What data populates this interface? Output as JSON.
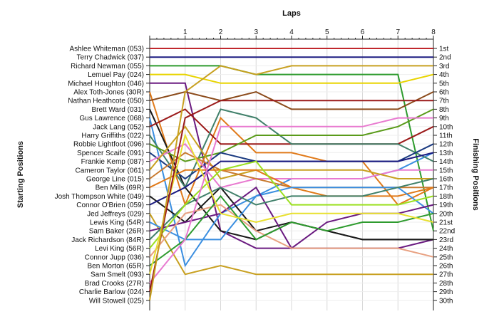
{
  "chart_data": {
    "type": "line",
    "title": "",
    "xlabel": "Laps",
    "ylabel_left": "Starting Positions",
    "ylabel_right": "Finishing Positions",
    "x": [
      0,
      1,
      2,
      3,
      4,
      5,
      6,
      7,
      8
    ],
    "x_tick_labels": [
      "1",
      "2",
      "3",
      "4",
      "5",
      "6",
      "7",
      "8"
    ],
    "y_axis": "position (1 at top)",
    "ylim": [
      1,
      30
    ],
    "grid": true,
    "finishing_labels": [
      "1st",
      "2nd",
      "3rd",
      "4th",
      "5th",
      "6th",
      "7th",
      "8th",
      "9th",
      "10th",
      "11th",
      "12th",
      "13th",
      "14th",
      "15th",
      "16th",
      "17th",
      "18th",
      "19th",
      "20th",
      "21st",
      "22nd",
      "23rd",
      "24th",
      "25th",
      "26th",
      "27th",
      "28th",
      "29th",
      "30th"
    ],
    "series": [
      {
        "name": "Ashlee Whiteman (053)",
        "color": "#c0282d",
        "positions": [
          1,
          1,
          1,
          1,
          1,
          1,
          1,
          1,
          1
        ]
      },
      {
        "name": "Terry Chadwick (037)",
        "color": "#1a1a80",
        "positions": [
          2,
          2,
          2,
          2,
          2,
          2,
          2,
          2,
          2
        ]
      },
      {
        "name": "Richard Newman (055)",
        "color": "#2e9b2e",
        "positions": [
          3,
          3,
          3,
          4,
          4,
          4,
          4,
          4,
          22
        ]
      },
      {
        "name": "Lemuel Pay (024)",
        "color": "#e8d400",
        "positions": [
          4,
          4,
          5,
          5,
          5,
          5,
          5,
          5,
          4
        ]
      },
      {
        "name": "Michael Houghton (046)",
        "color": "#6a1a80",
        "positions": [
          5,
          5,
          22,
          24,
          24,
          24,
          24,
          24,
          23
        ]
      },
      {
        "name": "Alex Toth-Jones (30R)",
        "color": "#e07a1a",
        "positions": [
          6,
          19,
          9,
          13,
          13,
          14,
          14,
          19,
          17
        ]
      },
      {
        "name": "Nathan Heathcote (050)",
        "color": "#8b4a1a",
        "positions": [
          7,
          6,
          7,
          6,
          8,
          8,
          8,
          8,
          6
        ]
      },
      {
        "name": "Brett Ward (031)",
        "color": "#1a1a1a",
        "positions": [
          8,
          17,
          22,
          23,
          21,
          22,
          23,
          23,
          23
        ]
      },
      {
        "name": "Gus Lawrence (068)",
        "color": "#3a8ee0",
        "positions": [
          9,
          26,
          20,
          18,
          16,
          16,
          16,
          15,
          13
        ]
      },
      {
        "name": "Jack Lang (052)",
        "color": "#9b1a1a",
        "positions": [
          10,
          8,
          12,
          12,
          12,
          12,
          12,
          12,
          10
        ]
      },
      {
        "name": "Harry Griffiths (022)",
        "color": "#40806a",
        "positions": [
          11,
          17,
          8,
          9,
          12,
          12,
          12,
          12,
          14
        ]
      },
      {
        "name": "Robbie Lightfoot (096)",
        "color": "#5a9b1a",
        "positions": [
          12,
          14,
          13,
          11,
          11,
          11,
          11,
          10,
          8
        ]
      },
      {
        "name": "Spencer Scaife (091)",
        "color": "#1a3a80",
        "positions": [
          13,
          16,
          13,
          14,
          14,
          14,
          14,
          14,
          12
        ]
      },
      {
        "name": "Frankie Kemp (087)",
        "color": "#e87ad0",
        "positions": [
          14,
          12,
          17,
          16,
          16,
          16,
          16,
          15,
          15
        ]
      },
      {
        "name": "Cameron Taylor (061)",
        "color": "#c8a020",
        "positions": [
          15,
          10,
          16,
          15,
          15,
          15,
          15,
          16,
          16
        ]
      },
      {
        "name": "George Line (015)",
        "color": "#c87a30",
        "positions": [
          16,
          13,
          15,
          16,
          17,
          17,
          17,
          17,
          17
        ]
      },
      {
        "name": "Ben Mills (69R)",
        "color": "#e07a1a",
        "positions": [
          17,
          15,
          15,
          15,
          17,
          18,
          18,
          18,
          17
        ]
      },
      {
        "name": "Josh Thompson White (049)",
        "color": "#1a1a1a",
        "positions": [
          18,
          21,
          17,
          22,
          21,
          22,
          23,
          23,
          23
        ]
      },
      {
        "name": "Connor O'Brien (059)",
        "color": "#1a1a80",
        "positions": [
          19,
          17,
          14,
          14,
          14,
          14,
          14,
          14,
          13
        ]
      },
      {
        "name": "Jed Jeffreys (029)",
        "color": "#c8a020",
        "positions": [
          20,
          27,
          26,
          27,
          27,
          27,
          27,
          27,
          27
        ]
      },
      {
        "name": "Lewis King (54R)",
        "color": "#3a8ee0",
        "positions": [
          21,
          23,
          23,
          18,
          17,
          17,
          17,
          17,
          20
        ]
      },
      {
        "name": "Sam Baker (26R)",
        "color": "#6a1a80",
        "positions": [
          22,
          21,
          20,
          17,
          24,
          21,
          20,
          20,
          19
        ]
      },
      {
        "name": "Jack Richardson (84R)",
        "color": "#40806a",
        "positions": [
          23,
          19,
          17,
          19,
          18,
          18,
          18,
          17,
          16
        ]
      },
      {
        "name": "Levi King (56R)",
        "color": "#9be020",
        "positions": [
          24,
          19,
          15,
          14,
          19,
          19,
          19,
          19,
          18
        ]
      },
      {
        "name": "Connor Jupp (036)",
        "color": "#e8a080",
        "positions": [
          25,
          20,
          19,
          22,
          24,
          24,
          24,
          24,
          25
        ]
      },
      {
        "name": "Ben Morton (65R)",
        "color": "#2e9b2e",
        "positions": [
          26,
          23,
          18,
          23,
          21,
          22,
          21,
          21,
          20
        ]
      },
      {
        "name": "Sam Smelt (093)",
        "color": "#e8e030",
        "positions": [
          27,
          11,
          20,
          21,
          20,
          20,
          20,
          20,
          21
        ]
      },
      {
        "name": "Brad Crooks (27R)",
        "color": "#e87ad0",
        "positions": [
          28,
          23,
          10,
          10,
          10,
          10,
          10,
          9,
          9
        ]
      },
      {
        "name": "Charlie Barlow (024)",
        "color": "#9b1a1a",
        "positions": [
          29,
          9,
          7,
          7,
          7,
          7,
          7,
          7,
          7
        ]
      },
      {
        "name": "Will Stowell (025)",
        "color": "#c8a020",
        "positions": [
          30,
          6,
          3,
          4,
          3,
          3,
          3,
          3,
          3
        ]
      }
    ]
  }
}
